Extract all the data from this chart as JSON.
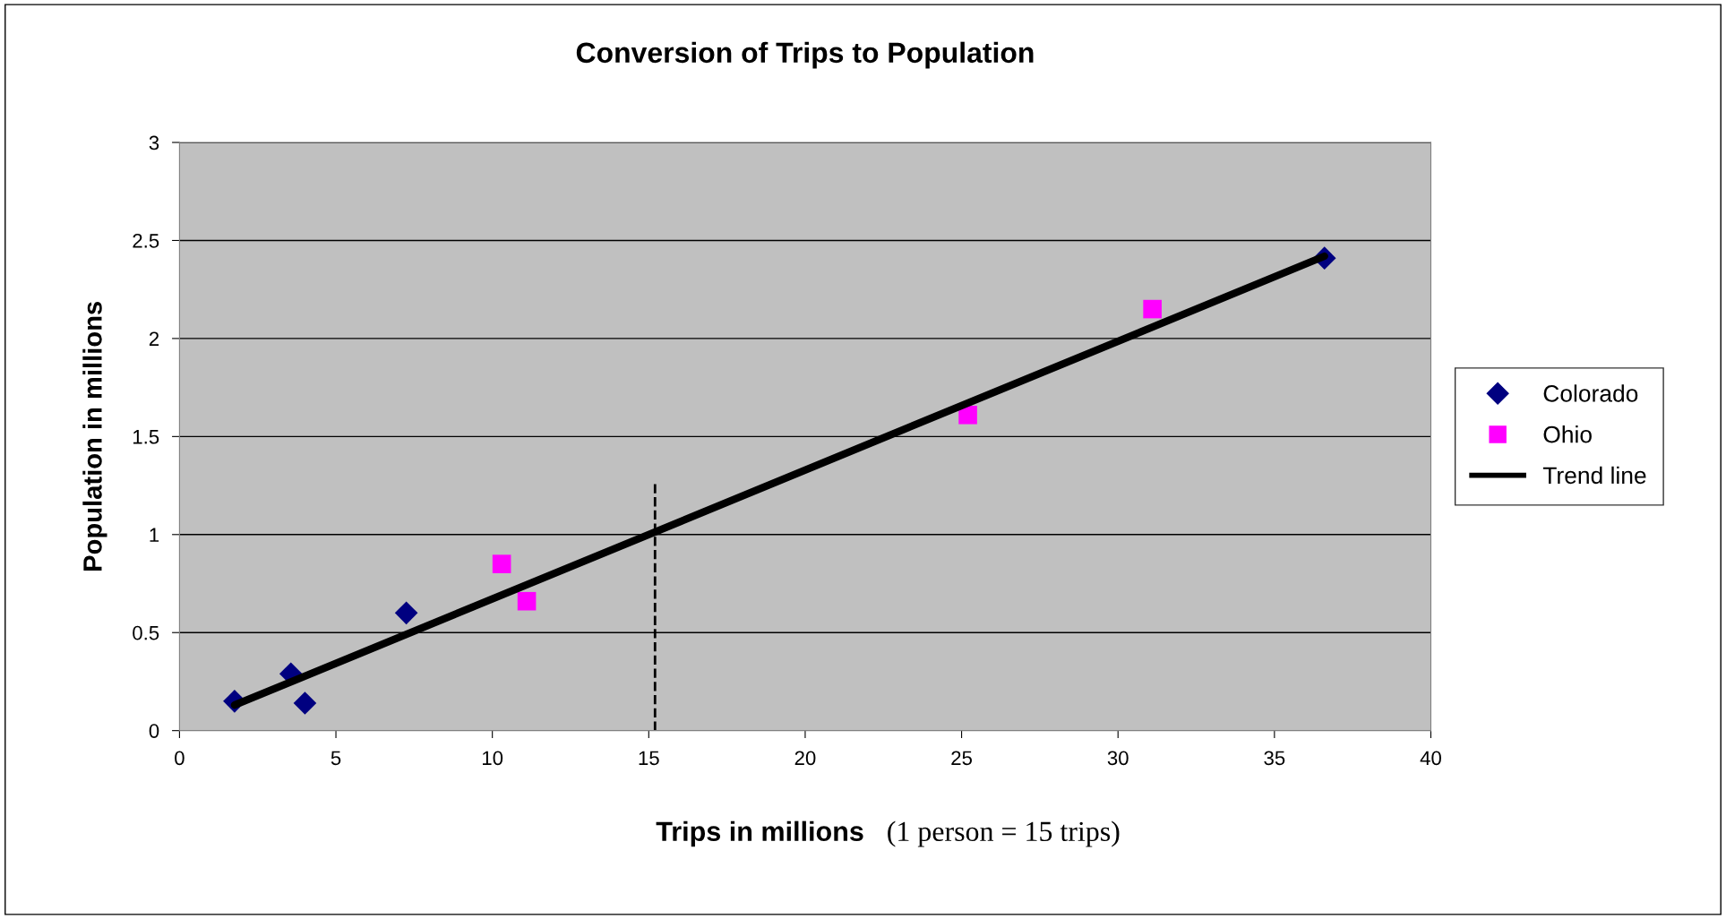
{
  "chart_data": {
    "type": "scatter",
    "title": "Conversion of Trips to Population",
    "xlabel": "Trips in millions   (1 person = 15 trips)",
    "ylabel": "Population in millions",
    "series": [
      {
        "name": "Colorado",
        "color": "#000080",
        "marker": "diamond",
        "x": [
          1.76,
          3.56,
          4.01,
          7.25,
          36.6
        ],
        "values": [
          0.15,
          0.29,
          0.14,
          0.6,
          2.41
        ]
      },
      {
        "name": "Ohio",
        "color": "#ff00ff",
        "marker": "square",
        "x": [
          10.3,
          11.1,
          25.2,
          31.1
        ],
        "values": [
          0.85,
          0.66,
          1.61,
          2.15
        ]
      },
      {
        "name": "Trend line",
        "type": "line",
        "color": "#000000",
        "marker": "none",
        "x": [
          1.76,
          36.6
        ],
        "values": [
          0.13,
          2.42
        ]
      }
    ],
    "ref_lines": [
      {
        "axis": "x",
        "value": 15.2,
        "label": null,
        "color": "#000000",
        "line_style": "dashed"
      }
    ],
    "xlim": [
      0,
      40
    ],
    "xticks": [
      0,
      5,
      10,
      15,
      20,
      25,
      30,
      35,
      40
    ],
    "ylim": [
      0,
      3
    ],
    "yticks": [
      0,
      0.5,
      1,
      1.5,
      2,
      2.5,
      3
    ],
    "grid": "y",
    "legend": "right"
  }
}
